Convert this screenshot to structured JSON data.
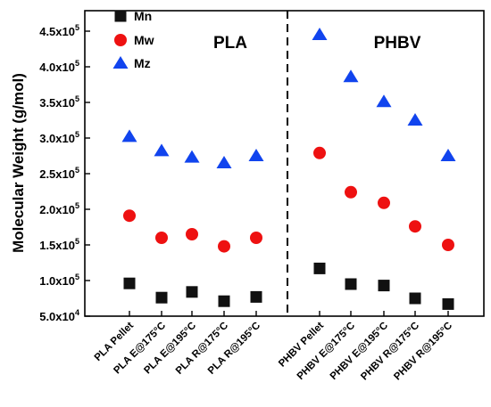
{
  "chart_data": {
    "type": "scatter",
    "ylabel": "Molecular Weight (g/mol)",
    "xlabel": "",
    "ylim": [
      50000,
      460000
    ],
    "y_ticks": [
      {
        "value": 50000,
        "mantissa": "5.0x10",
        "exp": "4"
      },
      {
        "value": 100000,
        "mantissa": "1.0x10",
        "exp": "5"
      },
      {
        "value": 150000,
        "mantissa": "1.5x10",
        "exp": "5"
      },
      {
        "value": 200000,
        "mantissa": "2.0x10",
        "exp": "5"
      },
      {
        "value": 250000,
        "mantissa": "2.5x10",
        "exp": "5"
      },
      {
        "value": 300000,
        "mantissa": "3.0x10",
        "exp": "5"
      },
      {
        "value": 350000,
        "mantissa": "3.5x10",
        "exp": "5"
      },
      {
        "value": 400000,
        "mantissa": "4.0x10",
        "exp": "5"
      },
      {
        "value": 450000,
        "mantissa": "4.5x10",
        "exp": "5"
      }
    ],
    "categories": [
      "PLA Pellet",
      "PLA E@175°C",
      "PLA E@195°C",
      "PLA R@175°C",
      "PLA R@195°C",
      "PHBV Pellet",
      "PHBV E@175°C",
      "PHBV E@195°C",
      "PHBV R@175°C",
      "PHBV R@195°C"
    ],
    "group_labels": [
      "PLA",
      "PHBV"
    ],
    "legend_position": "top-left",
    "grid": false,
    "series": [
      {
        "name": "Mn",
        "marker": "square",
        "color": "#111111",
        "values": [
          96000,
          76000,
          84000,
          71000,
          77000,
          117000,
          95000,
          93000,
          75000,
          67000
        ]
      },
      {
        "name": "Mw",
        "marker": "circle",
        "color": "#ee1111",
        "values": [
          191000,
          160000,
          165000,
          148000,
          160000,
          279000,
          224000,
          209000,
          176000,
          150000
        ]
      },
      {
        "name": "Mz",
        "marker": "triangle",
        "color": "#1144ee",
        "values": [
          302000,
          282000,
          273000,
          265000,
          275000,
          445000,
          386000,
          351000,
          325000,
          275000
        ]
      }
    ]
  }
}
